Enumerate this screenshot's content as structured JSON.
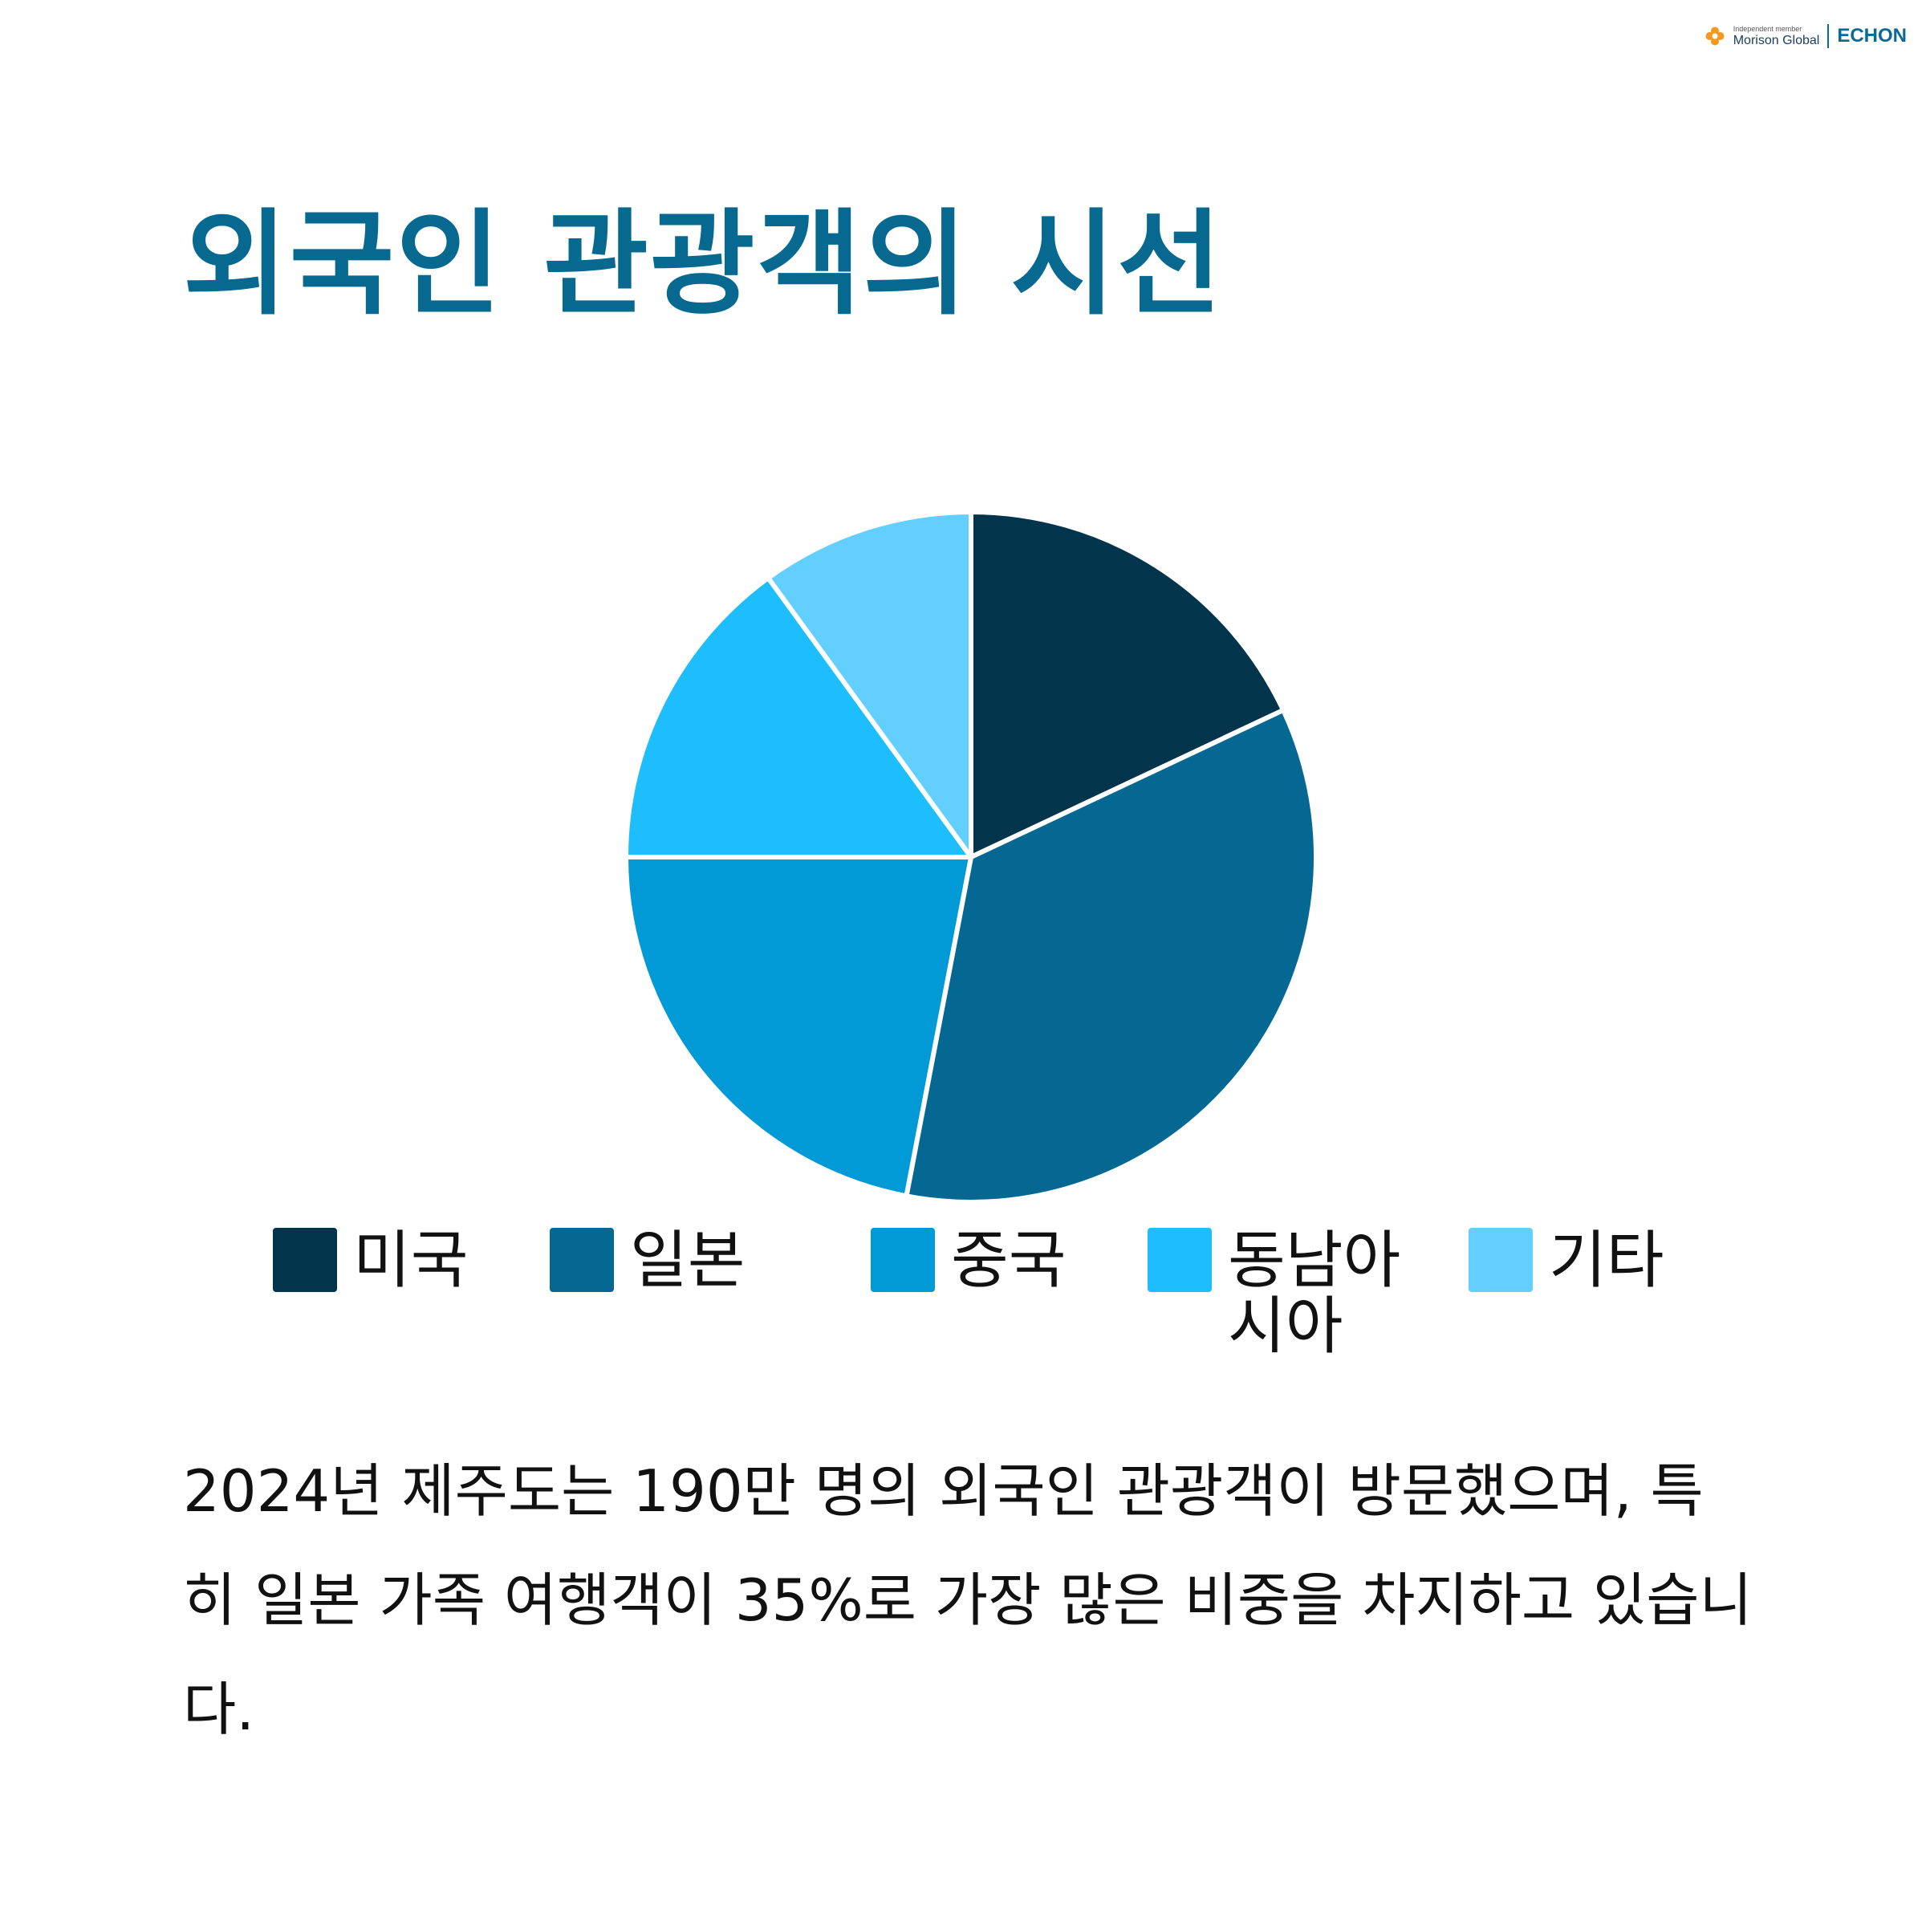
{
  "brand": {
    "small_text": "Independent member",
    "name": "Morison Global",
    "firm": "ECHON",
    "logo_icon": "morison-flower-icon",
    "logo_color": "#f39a1e"
  },
  "title": "외국인 관광객의 시선",
  "body_text": "2024년 제주도는 190만 명의 외국인 관광객이 방문했으며, 특히 일본 가족 여행객이 35%로 가장 많은 비중을 차지하고 있습니다.",
  "colors": {
    "title": "#07698f",
    "text": "#111111",
    "slice_border": "#ffffff"
  },
  "chart_data": {
    "type": "pie",
    "title": "",
    "legend_position": "bottom",
    "slices": [
      {
        "label": "미국",
        "value": 18,
        "color": "#02344c"
      },
      {
        "label": "일본",
        "value": 35,
        "color": "#046893"
      },
      {
        "label": "중국",
        "value": 22,
        "color": "#0199d6"
      },
      {
        "label": "동남아시아",
        "value": 15,
        "color": "#1ebefe"
      },
      {
        "label": "기타",
        "value": 10,
        "color": "#63cffe"
      }
    ],
    "legend_labels": [
      "미국",
      "일본",
      "중국",
      "동남아\n시아",
      "기타"
    ]
  }
}
